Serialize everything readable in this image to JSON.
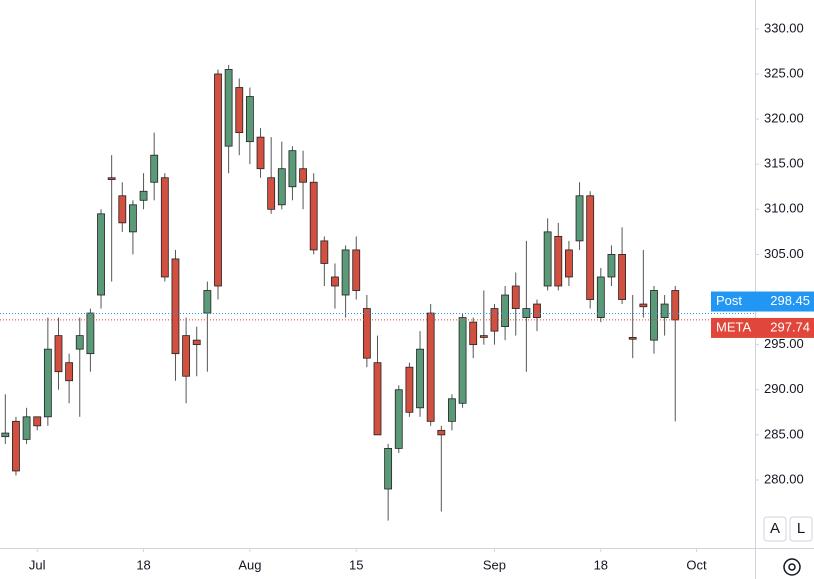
{
  "chart_data": {
    "type": "candlestick",
    "open": [
      284.8,
      286.5,
      284.5,
      287,
      287,
      296,
      293,
      294.5,
      294,
      300.5,
      313.5,
      311.5,
      307.5,
      311,
      313,
      313.5,
      304.5,
      296,
      295.5,
      298.5,
      325,
      317,
      323.5,
      317.5,
      318,
      313.5,
      310.5,
      312.5,
      314.5,
      313,
      306.5,
      302.5,
      300.5,
      305.5,
      299,
      293,
      279,
      283.5,
      292.5,
      288,
      298.5,
      285.5,
      286.5,
      288.5,
      297.5,
      296,
      299,
      297,
      301.5,
      298,
      299.5,
      301.5,
      307,
      305.5,
      306.5,
      311.5,
      298,
      302.5,
      305,
      295.8,
      299.5,
      295.5,
      298,
      301
    ],
    "high": [
      289.5,
      287,
      288,
      287,
      298,
      298,
      294,
      298,
      299,
      310,
      316,
      313,
      311,
      314,
      318.5,
      314,
      305.5,
      298,
      297,
      302,
      325.5,
      326,
      324.5,
      323.5,
      319,
      318,
      317.5,
      317,
      316.5,
      314,
      307,
      304,
      306,
      307,
      300.5,
      296,
      284,
      290.5,
      293,
      296.5,
      299.5,
      286,
      289.5,
      298.5,
      298,
      301,
      299.5,
      301.5,
      303,
      306.5,
      300,
      309,
      308.5,
      306.5,
      313,
      312,
      303.5,
      306,
      308,
      300.5,
      305.5,
      301.5,
      300.5,
      301.5
    ],
    "low": [
      284,
      280.5,
      284,
      285.5,
      286,
      290,
      288.5,
      287,
      292,
      299,
      302,
      307.5,
      305,
      310,
      311,
      302,
      291,
      288.5,
      291.5,
      292,
      300,
      314,
      316,
      315,
      313.5,
      309.5,
      310,
      311,
      310,
      305,
      301.5,
      299,
      298,
      300,
      292.5,
      285,
      275.5,
      283,
      287,
      287,
      286,
      276.5,
      285.5,
      288,
      293.5,
      295,
      295,
      295.5,
      296,
      292,
      296.5,
      301,
      301,
      301.5,
      305.5,
      299,
      297.5,
      301.5,
      299.5,
      293.5,
      298,
      294,
      296,
      286.5
    ],
    "close": [
      285.2,
      281,
      287,
      286,
      294.5,
      292,
      291,
      296,
      298.5,
      309.5,
      313.3,
      308.5,
      310.5,
      312,
      316,
      302.5,
      294,
      291.5,
      295,
      301,
      301.5,
      325.5,
      318.5,
      322.5,
      314.5,
      310,
      314.5,
      316.5,
      313,
      305.5,
      304,
      301.5,
      305.5,
      301,
      293.5,
      285,
      283.5,
      290,
      287.5,
      294.5,
      286.5,
      285,
      289,
      298,
      295,
      295.8,
      296.5,
      300.5,
      299,
      299,
      298,
      307.5,
      301.5,
      302.5,
      311.5,
      300,
      302.5,
      305,
      300,
      295.6,
      299.2,
      301,
      299.5,
      297.74
    ],
    "up_color": "#5b9a78",
    "down_color": "#d1503f",
    "xlim": [
      -0.5,
      70.5
    ],
    "xticks": [
      {
        "value": 3,
        "label": "Jul"
      },
      {
        "value": 13,
        "label": "18"
      },
      {
        "value": 23,
        "label": "Aug"
      },
      {
        "value": 33,
        "label": "15"
      },
      {
        "value": 46,
        "label": "Sep"
      },
      {
        "value": 56,
        "label": "18"
      },
      {
        "value": 65,
        "label": "Oct"
      }
    ],
    "ylim": [
      272.46,
      333.2
    ],
    "yticks": [
      {
        "value": 280,
        "label": "280.00"
      },
      {
        "value": 285,
        "label": "285.00"
      },
      {
        "value": 290,
        "label": "290.00"
      },
      {
        "value": 295,
        "label": "295.00"
      },
      {
        "value": 300,
        "label": "300.00"
      },
      {
        "value": 305,
        "label": "305.00"
      },
      {
        "value": 310,
        "label": "310.00"
      },
      {
        "value": 315,
        "label": "315.00"
      },
      {
        "value": 320,
        "label": "320.00"
      },
      {
        "value": 325,
        "label": "325.00"
      },
      {
        "value": 330,
        "label": "330.00"
      }
    ],
    "price_lines": [
      {
        "name": "Post",
        "value": 298.45,
        "color": "#2196f3"
      },
      {
        "name": "META",
        "value": 297.74,
        "color": "#e0473a"
      }
    ],
    "buttons": [
      "A",
      "L"
    ]
  }
}
